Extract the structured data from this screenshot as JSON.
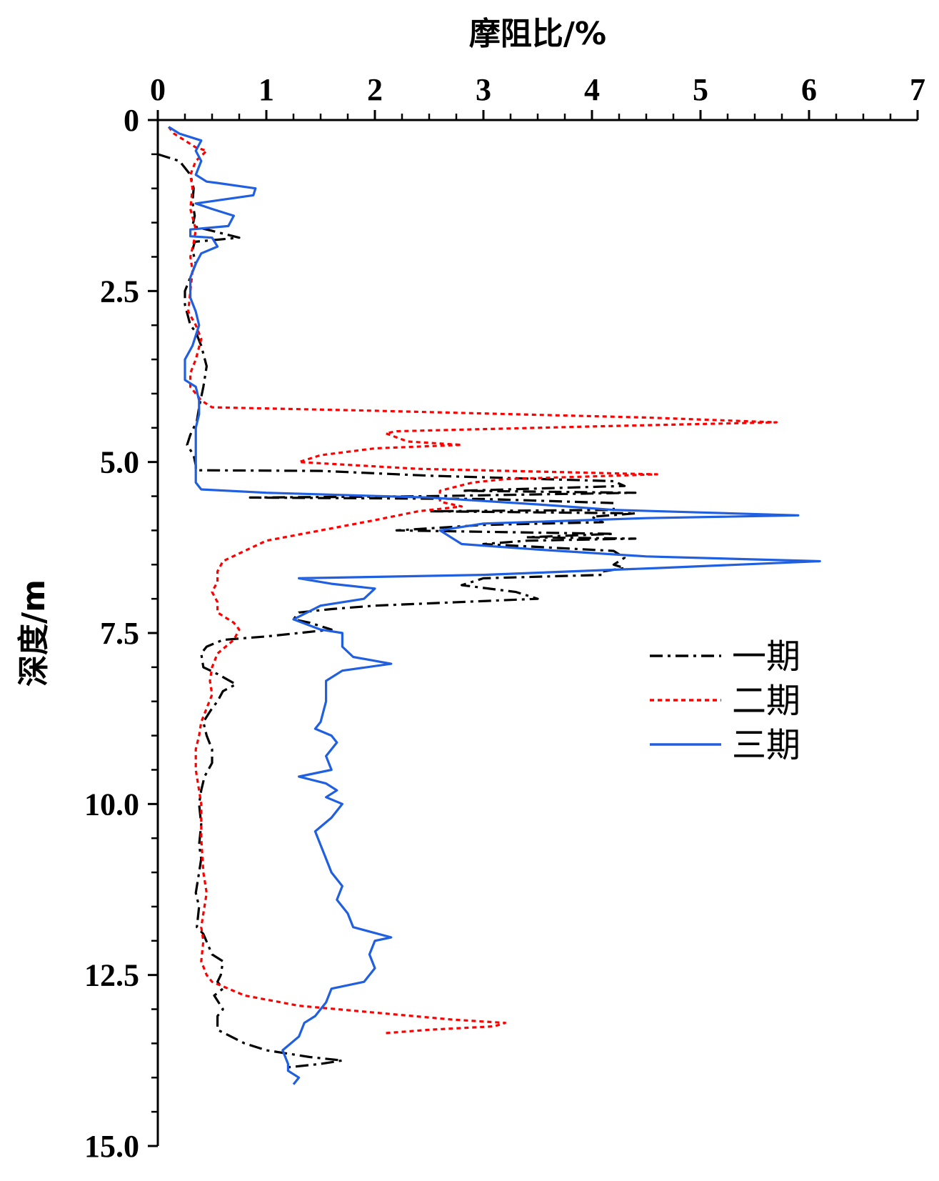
{
  "chart_data": {
    "type": "line",
    "orientation": "depth-profile",
    "xlabel": "摩阻比/%",
    "ylabel": "深度/m",
    "xlim": [
      0,
      7
    ],
    "ylim": [
      15.0,
      0
    ],
    "x_axis_position": "top",
    "y_axis_inverted": true,
    "grid": false,
    "legend_position": "middle-right",
    "x_ticks": [
      "0",
      "1",
      "2",
      "3",
      "4",
      "5",
      "6",
      "7"
    ],
    "y_ticks": [
      "0",
      "2.5",
      "5.0",
      "7.5",
      "10.0",
      "12.5",
      "15.0"
    ],
    "series": [
      {
        "name": "一期",
        "color": "#000000",
        "style": "dash-dot",
        "points": [
          [
            0.0,
            0.5
          ],
          [
            0.2,
            0.6
          ],
          [
            0.3,
            0.8
          ],
          [
            0.33,
            1.0
          ],
          [
            0.32,
            1.2
          ],
          [
            0.34,
            1.4
          ],
          [
            0.32,
            1.55
          ],
          [
            0.5,
            1.62
          ],
          [
            0.75,
            1.72
          ],
          [
            0.34,
            1.78
          ],
          [
            0.32,
            1.9
          ],
          [
            0.35,
            2.1
          ],
          [
            0.3,
            2.3
          ],
          [
            0.25,
            2.5
          ],
          [
            0.25,
            2.7
          ],
          [
            0.3,
            3.0
          ],
          [
            0.35,
            3.1
          ],
          [
            0.4,
            3.3
          ],
          [
            0.45,
            3.6
          ],
          [
            0.42,
            3.9
          ],
          [
            0.38,
            4.2
          ],
          [
            0.36,
            4.4
          ],
          [
            0.3,
            4.6
          ],
          [
            0.27,
            4.75
          ],
          [
            0.33,
            4.9
          ],
          [
            0.35,
            5.05
          ],
          [
            0.35,
            5.12
          ],
          [
            1.5,
            5.13
          ],
          [
            2.5,
            5.2
          ],
          [
            4.2,
            5.28
          ],
          [
            4.3,
            5.35
          ],
          [
            2.8,
            5.42
          ],
          [
            4.4,
            5.45
          ],
          [
            2.5,
            5.5
          ],
          [
            0.85,
            5.52
          ],
          [
            3.0,
            5.54
          ],
          [
            4.2,
            5.6
          ],
          [
            4.2,
            5.7
          ],
          [
            2.5,
            5.72
          ],
          [
            4.4,
            5.75
          ],
          [
            4.0,
            5.8
          ],
          [
            4.1,
            5.88
          ],
          [
            3.0,
            5.92
          ],
          [
            2.2,
            6.0
          ],
          [
            4.2,
            6.05
          ],
          [
            3.4,
            6.1
          ],
          [
            4.4,
            6.12
          ],
          [
            3.4,
            6.15
          ],
          [
            3.0,
            6.2
          ],
          [
            4.2,
            6.3
          ],
          [
            4.3,
            6.4
          ],
          [
            4.2,
            6.5
          ],
          [
            4.3,
            6.55
          ],
          [
            4.1,
            6.6
          ],
          [
            4.1,
            6.65
          ],
          [
            3.0,
            6.7
          ],
          [
            2.8,
            6.8
          ],
          [
            3.3,
            6.9
          ],
          [
            3.5,
            7.0
          ],
          [
            2.0,
            7.1
          ],
          [
            1.6,
            7.15
          ],
          [
            1.3,
            7.2
          ],
          [
            1.25,
            7.3
          ],
          [
            1.4,
            7.35
          ],
          [
            1.6,
            7.45
          ],
          [
            1.3,
            7.5
          ],
          [
            1.0,
            7.55
          ],
          [
            0.6,
            7.6
          ],
          [
            0.45,
            7.7
          ],
          [
            0.4,
            7.8
          ],
          [
            0.42,
            8.0
          ],
          [
            0.55,
            8.1
          ],
          [
            0.72,
            8.25
          ],
          [
            0.6,
            8.35
          ],
          [
            0.55,
            8.5
          ],
          [
            0.5,
            8.6
          ],
          [
            0.42,
            8.8
          ],
          [
            0.45,
            9.0
          ],
          [
            0.5,
            9.2
          ],
          [
            0.5,
            9.4
          ],
          [
            0.43,
            9.6
          ],
          [
            0.4,
            9.8
          ],
          [
            0.38,
            10.0
          ],
          [
            0.4,
            10.3
          ],
          [
            0.38,
            10.6
          ],
          [
            0.4,
            10.8
          ],
          [
            0.38,
            11.0
          ],
          [
            0.35,
            11.3
          ],
          [
            0.38,
            11.5
          ],
          [
            0.36,
            11.8
          ],
          [
            0.42,
            11.9
          ],
          [
            0.5,
            12.2
          ],
          [
            0.6,
            12.3
          ],
          [
            0.58,
            12.5
          ],
          [
            0.55,
            12.6
          ],
          [
            0.6,
            12.7
          ],
          [
            0.52,
            12.8
          ],
          [
            0.6,
            13.0
          ],
          [
            0.55,
            13.1
          ],
          [
            0.55,
            13.3
          ],
          [
            0.8,
            13.5
          ],
          [
            1.0,
            13.6
          ],
          [
            1.4,
            13.7
          ],
          [
            1.7,
            13.75
          ],
          [
            1.5,
            13.8
          ],
          [
            1.2,
            13.85
          ]
        ]
      },
      {
        "name": "二期",
        "color": "#ff0000",
        "style": "dotted",
        "points": [
          [
            0.1,
            0.1
          ],
          [
            0.15,
            0.2
          ],
          [
            0.35,
            0.4
          ],
          [
            0.45,
            0.45
          ],
          [
            0.35,
            0.6
          ],
          [
            0.3,
            0.8
          ],
          [
            0.32,
            1.0
          ],
          [
            0.3,
            1.3
          ],
          [
            0.35,
            1.6
          ],
          [
            0.33,
            1.8
          ],
          [
            0.3,
            2.0
          ],
          [
            0.32,
            2.2
          ],
          [
            0.3,
            2.5
          ],
          [
            0.28,
            2.8
          ],
          [
            0.35,
            3.0
          ],
          [
            0.4,
            3.2
          ],
          [
            0.35,
            3.5
          ],
          [
            0.3,
            3.7
          ],
          [
            0.3,
            3.9
          ],
          [
            0.4,
            4.1
          ],
          [
            0.5,
            4.2
          ],
          [
            2.0,
            4.25
          ],
          [
            4.5,
            4.35
          ],
          [
            5.7,
            4.42
          ],
          [
            4.0,
            4.48
          ],
          [
            2.2,
            4.55
          ],
          [
            2.1,
            4.58
          ],
          [
            2.3,
            4.7
          ],
          [
            2.8,
            4.75
          ],
          [
            2.0,
            4.8
          ],
          [
            1.5,
            4.9
          ],
          [
            1.3,
            5.0
          ],
          [
            2.4,
            5.1
          ],
          [
            4.6,
            5.18
          ],
          [
            3.2,
            5.25
          ],
          [
            2.9,
            5.3
          ],
          [
            2.6,
            5.42
          ],
          [
            2.6,
            5.58
          ],
          [
            2.8,
            5.65
          ],
          [
            2.4,
            5.72
          ],
          [
            2.0,
            5.85
          ],
          [
            1.5,
            6.0
          ],
          [
            1.0,
            6.15
          ],
          [
            0.8,
            6.3
          ],
          [
            0.6,
            6.45
          ],
          [
            0.55,
            6.6
          ],
          [
            0.55,
            6.75
          ],
          [
            0.5,
            6.9
          ],
          [
            0.55,
            7.05
          ],
          [
            0.55,
            7.2
          ],
          [
            0.7,
            7.35
          ],
          [
            0.75,
            7.45
          ],
          [
            0.7,
            7.6
          ],
          [
            0.55,
            7.8
          ],
          [
            0.5,
            8.0
          ],
          [
            0.48,
            8.2
          ],
          [
            0.5,
            8.4
          ],
          [
            0.45,
            8.6
          ],
          [
            0.4,
            8.8
          ],
          [
            0.38,
            9.0
          ],
          [
            0.35,
            9.2
          ],
          [
            0.35,
            9.5
          ],
          [
            0.38,
            9.8
          ],
          [
            0.4,
            10.0
          ],
          [
            0.4,
            10.5
          ],
          [
            0.42,
            11.0
          ],
          [
            0.45,
            11.3
          ],
          [
            0.42,
            11.6
          ],
          [
            0.4,
            11.8
          ],
          [
            0.42,
            12.0
          ],
          [
            0.4,
            12.3
          ],
          [
            0.45,
            12.5
          ],
          [
            0.5,
            12.6
          ],
          [
            0.8,
            12.8
          ],
          [
            1.3,
            12.95
          ],
          [
            2.0,
            13.05
          ],
          [
            2.7,
            13.15
          ],
          [
            3.2,
            13.2
          ],
          [
            3.1,
            13.25
          ],
          [
            2.5,
            13.3
          ],
          [
            2.1,
            13.35
          ]
        ]
      },
      {
        "name": "三期",
        "color": "#1f5fe0",
        "style": "solid",
        "points": [
          [
            0.1,
            0.1
          ],
          [
            0.2,
            0.2
          ],
          [
            0.4,
            0.3
          ],
          [
            0.35,
            0.45
          ],
          [
            0.4,
            0.6
          ],
          [
            0.35,
            0.8
          ],
          [
            0.45,
            0.9
          ],
          [
            0.55,
            0.92
          ],
          [
            0.9,
            1.0
          ],
          [
            0.88,
            1.1
          ],
          [
            0.35,
            1.22
          ],
          [
            0.5,
            1.3
          ],
          [
            0.7,
            1.4
          ],
          [
            0.65,
            1.55
          ],
          [
            0.3,
            1.6
          ],
          [
            0.3,
            1.7
          ],
          [
            0.5,
            1.72
          ],
          [
            0.55,
            1.85
          ],
          [
            0.4,
            1.95
          ],
          [
            0.35,
            2.1
          ],
          [
            0.3,
            2.3
          ],
          [
            0.3,
            2.6
          ],
          [
            0.35,
            2.8
          ],
          [
            0.38,
            3.0
          ],
          [
            0.32,
            3.3
          ],
          [
            0.25,
            3.5
          ],
          [
            0.25,
            3.8
          ],
          [
            0.35,
            3.9
          ],
          [
            0.38,
            4.1
          ],
          [
            0.38,
            4.3
          ],
          [
            0.35,
            4.5
          ],
          [
            0.35,
            4.8
          ],
          [
            0.35,
            5.0
          ],
          [
            0.35,
            5.2
          ],
          [
            0.35,
            5.3
          ],
          [
            0.4,
            5.4
          ],
          [
            1.0,
            5.45
          ],
          [
            2.5,
            5.52
          ],
          [
            3.5,
            5.62
          ],
          [
            4.2,
            5.7
          ],
          [
            5.9,
            5.78
          ],
          [
            4.5,
            5.82
          ],
          [
            3.0,
            5.9
          ],
          [
            2.6,
            6.0
          ],
          [
            2.8,
            6.2
          ],
          [
            3.5,
            6.28
          ],
          [
            4.5,
            6.38
          ],
          [
            6.1,
            6.45
          ],
          [
            4.6,
            6.55
          ],
          [
            3.0,
            6.65
          ],
          [
            1.3,
            6.7
          ],
          [
            1.6,
            6.78
          ],
          [
            2.0,
            6.85
          ],
          [
            1.9,
            7.0
          ],
          [
            1.5,
            7.1
          ],
          [
            1.25,
            7.3
          ],
          [
            1.5,
            7.45
          ],
          [
            1.7,
            7.5
          ],
          [
            1.7,
            7.7
          ],
          [
            1.8,
            7.85
          ],
          [
            2.15,
            7.95
          ],
          [
            1.7,
            8.05
          ],
          [
            1.55,
            8.2
          ],
          [
            1.55,
            8.5
          ],
          [
            1.5,
            8.8
          ],
          [
            1.45,
            8.9
          ],
          [
            1.6,
            9.0
          ],
          [
            1.65,
            9.1
          ],
          [
            1.55,
            9.3
          ],
          [
            1.6,
            9.5
          ],
          [
            1.3,
            9.6
          ],
          [
            1.55,
            9.7
          ],
          [
            1.65,
            9.8
          ],
          [
            1.55,
            9.9
          ],
          [
            1.7,
            10.0
          ],
          [
            1.6,
            10.2
          ],
          [
            1.45,
            10.4
          ],
          [
            1.5,
            10.6
          ],
          [
            1.55,
            10.8
          ],
          [
            1.6,
            11.0
          ],
          [
            1.7,
            11.2
          ],
          [
            1.65,
            11.4
          ],
          [
            1.75,
            11.6
          ],
          [
            1.8,
            11.8
          ],
          [
            2.15,
            11.95
          ],
          [
            2.0,
            12.0
          ],
          [
            1.95,
            12.2
          ],
          [
            2.0,
            12.4
          ],
          [
            1.9,
            12.6
          ],
          [
            1.6,
            12.7
          ],
          [
            1.55,
            12.9
          ],
          [
            1.45,
            13.1
          ],
          [
            1.35,
            13.2
          ],
          [
            1.3,
            13.4
          ],
          [
            1.15,
            13.6
          ],
          [
            1.2,
            13.8
          ],
          [
            1.2,
            13.9
          ],
          [
            1.3,
            14.0
          ],
          [
            1.25,
            14.1
          ]
        ]
      }
    ]
  }
}
